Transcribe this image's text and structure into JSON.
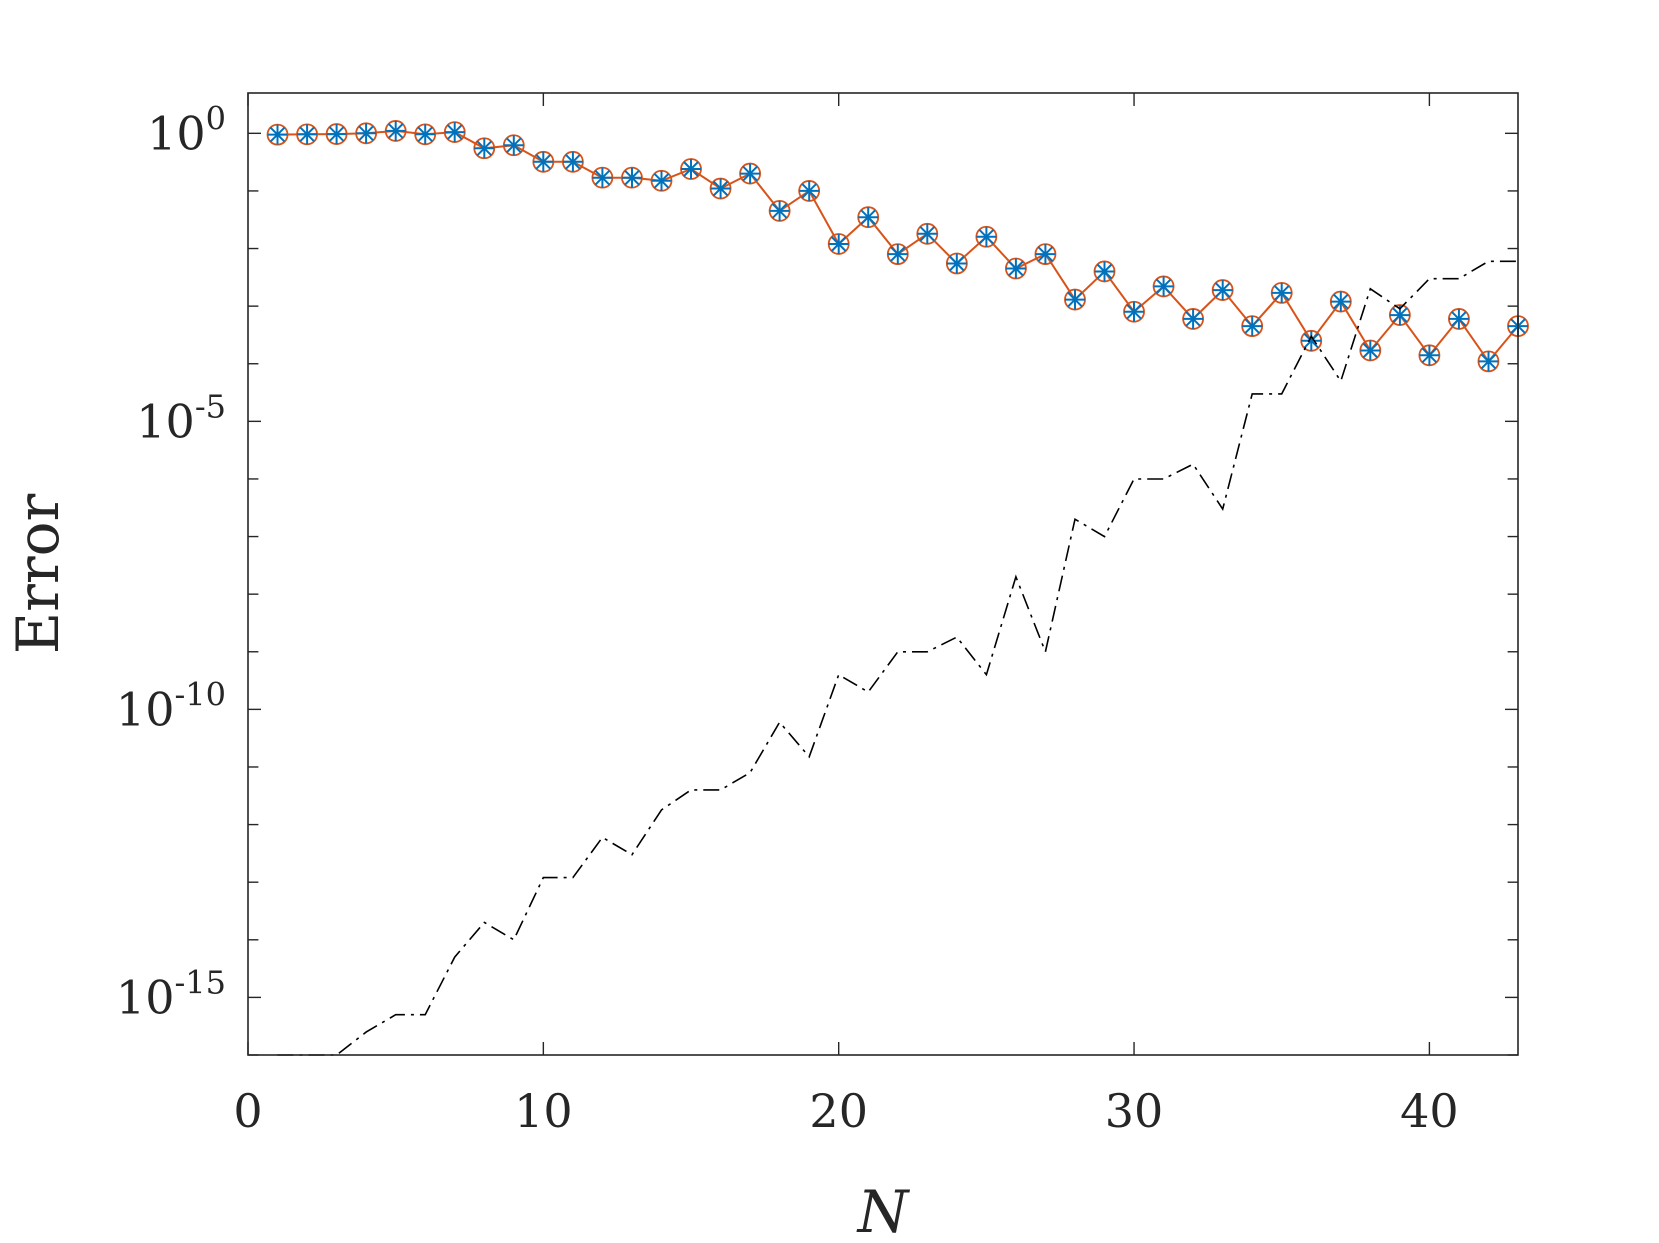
{
  "chart_data": {
    "type": "line",
    "xlabel": "N",
    "ylabel": "Error",
    "xlim": [
      0,
      43
    ],
    "ylim_log10": [
      -16,
      0.7
    ],
    "y_scale": "log",
    "grid": false,
    "x_ticks": [
      {
        "value": 0,
        "label": "0"
      },
      {
        "value": 10,
        "label": "10"
      },
      {
        "value": 20,
        "label": "20"
      },
      {
        "value": 30,
        "label": "30"
      },
      {
        "value": 40,
        "label": "40"
      }
    ],
    "y_ticks": [
      {
        "value": 1,
        "base": "10",
        "exp": "0"
      },
      {
        "value": 1e-05,
        "base": "10",
        "exp": "-5"
      },
      {
        "value": 1e-10,
        "base": "10",
        "exp": "-10"
      },
      {
        "value": 1e-15,
        "base": "10",
        "exp": "-15"
      }
    ],
    "x": [
      1,
      2,
      3,
      4,
      5,
      6,
      7,
      8,
      9,
      10,
      11,
      12,
      13,
      14,
      15,
      16,
      17,
      18,
      19,
      20,
      21,
      22,
      23,
      24,
      25,
      26,
      27,
      28,
      29,
      30,
      31,
      32,
      33,
      34,
      35,
      36,
      37,
      38,
      39,
      40,
      41,
      42,
      43
    ],
    "series": [
      {
        "style": "solid-circle",
        "color": "#D95319",
        "values": [
          0.95,
          0.96,
          0.97,
          1.0,
          1.1,
          0.96,
          1.05,
          0.55,
          0.62,
          0.32,
          0.32,
          0.17,
          0.17,
          0.15,
          0.24,
          0.11,
          0.2,
          0.045,
          0.1,
          0.012,
          0.035,
          0.008,
          0.018,
          0.0055,
          0.016,
          0.0045,
          0.008,
          0.0013,
          0.004,
          0.0008,
          0.0022,
          0.0006,
          0.0019,
          0.00045,
          0.0017,
          0.00025,
          0.0012,
          0.00017,
          0.0007,
          0.00014,
          0.0006,
          0.00011,
          0.00045
        ]
      },
      {
        "style": "asterisk-marker",
        "color": "#0072BD",
        "values": [
          0.95,
          0.96,
          0.97,
          1.0,
          1.1,
          0.96,
          1.05,
          0.55,
          0.62,
          0.32,
          0.32,
          0.17,
          0.17,
          0.15,
          0.24,
          0.11,
          0.2,
          0.045,
          0.1,
          0.012,
          0.035,
          0.008,
          0.018,
          0.0055,
          0.016,
          0.0045,
          0.008,
          0.0013,
          0.004,
          0.0008,
          0.0022,
          0.0006,
          0.0019,
          0.00045,
          0.0017,
          0.00025,
          0.0012,
          0.00017,
          0.0007,
          0.00014,
          0.0006,
          0.00011,
          0.00045
        ]
      },
      {
        "style": "dash-dot",
        "color": "#000000",
        "values": [
          1e-16,
          1e-16,
          1e-16,
          2.5e-16,
          5e-16,
          5e-16,
          5e-15,
          2e-14,
          1e-14,
          1.2e-13,
          1.2e-13,
          6e-13,
          3e-13,
          1.8e-12,
          4e-12,
          4e-12,
          8e-12,
          6e-11,
          1.5e-11,
          4e-10,
          2e-10,
          1e-09,
          1e-09,
          1.8e-09,
          4e-10,
          2e-08,
          1e-09,
          2e-07,
          1e-07,
          1e-06,
          1e-06,
          1.8e-06,
          3e-07,
          3e-05,
          3e-05,
          0.0003,
          5e-05,
          0.002,
          0.0009,
          0.003,
          0.003,
          0.006,
          0.006
        ]
      }
    ]
  }
}
